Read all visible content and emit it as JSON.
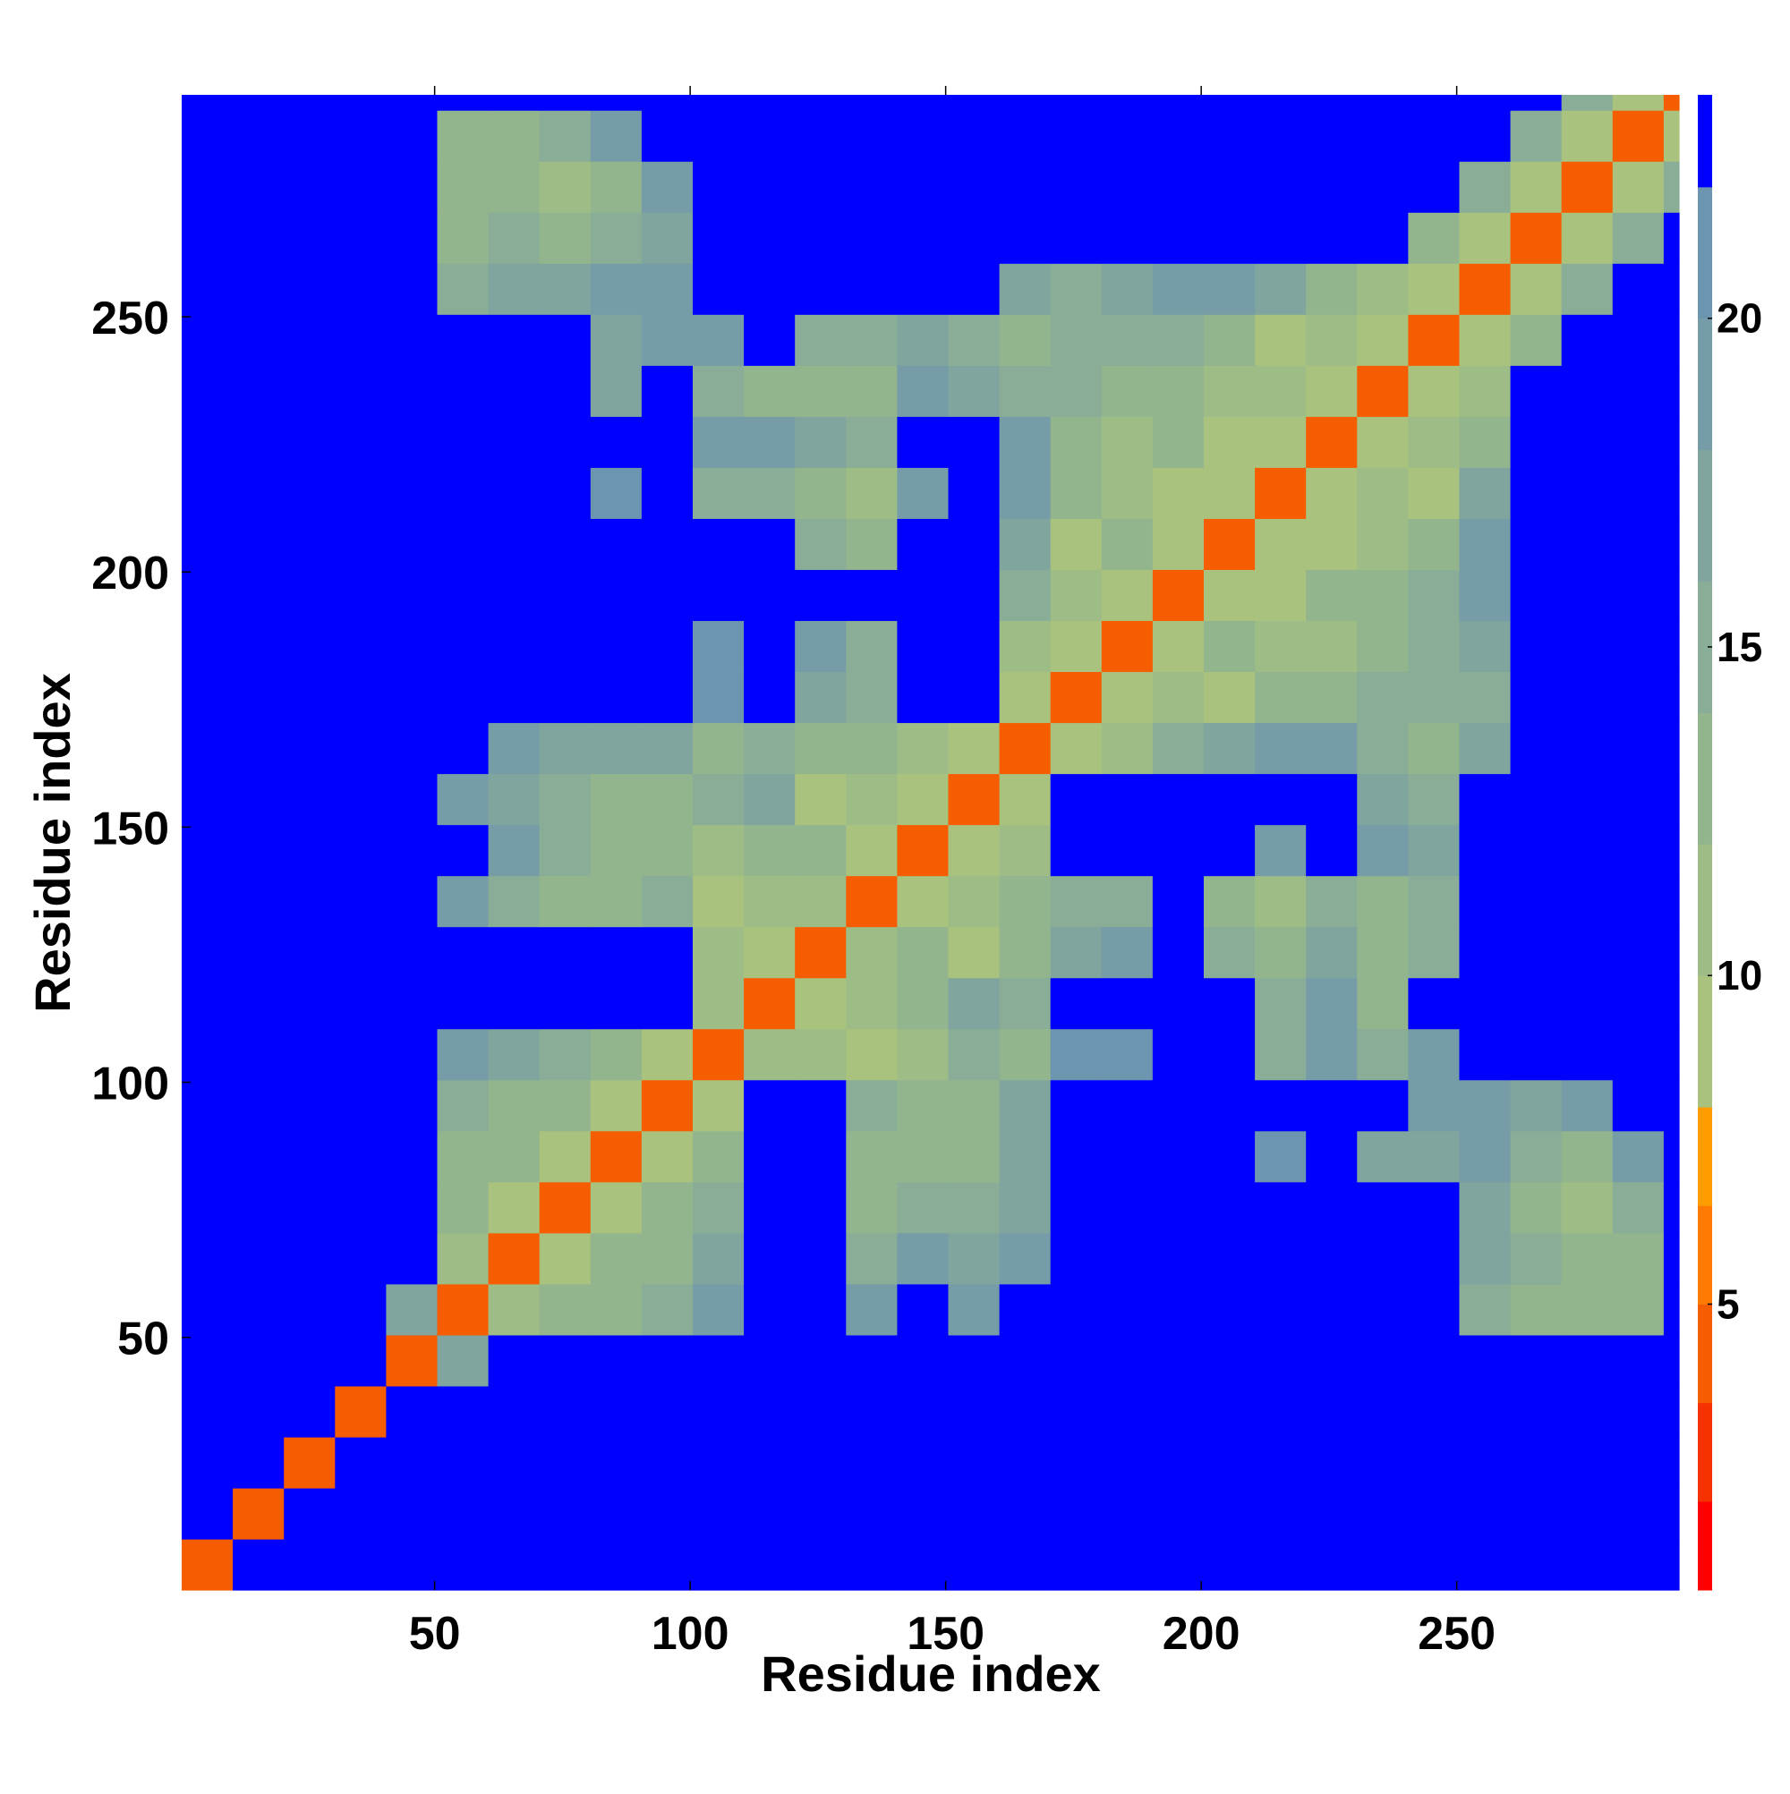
{
  "chart_data": {
    "type": "heatmap",
    "xlabel": "Residue index",
    "ylabel": "Residue index",
    "xlim": [
      0.5,
      293.5
    ],
    "ylim": [
      0.5,
      293.5
    ],
    "xticks": [
      50,
      100,
      150,
      200,
      250
    ],
    "yticks": [
      50,
      100,
      150,
      200,
      250
    ],
    "bin_edges": [
      0.5,
      10.5,
      20.5,
      30.5,
      40.5,
      50.5,
      60.5,
      70.5,
      80.5,
      90.5,
      100.5,
      110.5,
      120.5,
      130.5,
      140.5,
      150.5,
      160.5,
      170.5,
      180.5,
      190.5,
      200.5,
      210.5,
      220.5,
      230.5,
      240.5,
      250.5,
      260.5,
      270.5,
      280.5,
      290.5,
      293.5
    ],
    "z": [
      [
        4,
        23,
        23,
        23,
        23,
        23,
        23,
        23,
        23,
        23,
        23,
        23,
        23,
        23,
        23,
        23,
        23,
        23,
        23,
        23,
        23,
        23,
        23,
        23,
        23,
        23,
        23,
        23,
        23,
        23
      ],
      [
        23,
        4,
        23,
        23,
        23,
        23,
        23,
        23,
        23,
        23,
        23,
        23,
        23,
        23,
        23,
        23,
        23,
        23,
        23,
        23,
        23,
        23,
        23,
        23,
        23,
        23,
        23,
        23,
        23,
        23
      ],
      [
        23,
        23,
        4,
        23,
        23,
        23,
        23,
        23,
        23,
        23,
        23,
        23,
        23,
        23,
        23,
        23,
        23,
        23,
        23,
        23,
        23,
        23,
        23,
        23,
        23,
        23,
        23,
        23,
        23,
        23
      ],
      [
        23,
        23,
        23,
        4,
        23,
        23,
        23,
        23,
        23,
        23,
        23,
        23,
        23,
        23,
        23,
        23,
        23,
        23,
        23,
        23,
        23,
        23,
        23,
        23,
        23,
        23,
        23,
        23,
        23,
        23
      ],
      [
        23,
        23,
        23,
        23,
        4,
        16,
        23,
        23,
        23,
        23,
        23,
        23,
        23,
        23,
        23,
        23,
        23,
        23,
        23,
        23,
        23,
        23,
        23,
        23,
        23,
        23,
        23,
        23,
        23,
        23
      ],
      [
        23,
        23,
        23,
        23,
        16,
        4,
        10,
        12,
        13,
        14,
        18,
        23,
        23,
        18,
        23,
        18,
        23,
        23,
        23,
        23,
        23,
        23,
        23,
        23,
        23,
        14,
        12,
        13,
        13,
        23
      ],
      [
        23,
        23,
        23,
        23,
        23,
        10,
        4,
        9,
        12,
        12,
        16,
        23,
        23,
        14,
        18,
        16,
        18,
        23,
        23,
        23,
        23,
        23,
        23,
        23,
        23,
        16,
        14,
        12,
        12,
        23
      ],
      [
        23,
        23,
        23,
        23,
        23,
        12,
        9,
        4,
        9,
        12,
        14,
        23,
        23,
        12,
        14,
        14,
        16,
        23,
        23,
        23,
        23,
        23,
        23,
        23,
        23,
        16,
        13,
        11,
        14,
        23
      ],
      [
        23,
        23,
        23,
        23,
        23,
        13,
        12,
        9,
        4,
        9,
        12,
        23,
        23,
        12,
        13,
        12,
        16,
        23,
        23,
        23,
        23,
        20,
        23,
        16,
        16,
        18,
        14,
        12,
        18,
        23
      ],
      [
        23,
        23,
        23,
        23,
        23,
        14,
        12,
        12,
        9,
        4,
        9,
        23,
        23,
        14,
        12,
        12,
        16,
        23,
        23,
        23,
        23,
        23,
        23,
        23,
        18,
        18,
        16,
        18,
        23,
        23
      ],
      [
        23,
        23,
        23,
        23,
        23,
        18,
        16,
        14,
        12,
        9,
        4,
        10,
        10,
        8,
        10,
        14,
        12,
        20,
        20,
        23,
        23,
        15,
        18,
        15,
        18,
        23,
        23,
        23,
        23,
        23
      ],
      [
        23,
        23,
        23,
        23,
        23,
        23,
        23,
        23,
        23,
        23,
        10,
        4,
        8,
        10,
        12,
        16,
        14,
        23,
        23,
        23,
        23,
        14,
        18,
        13,
        23,
        23,
        23,
        23,
        23,
        23
      ],
      [
        23,
        23,
        23,
        23,
        23,
        23,
        23,
        23,
        23,
        23,
        10,
        8,
        4,
        10,
        12,
        8,
        12,
        16,
        18,
        23,
        14,
        13,
        16,
        13,
        15,
        23,
        23,
        23,
        23,
        23
      ],
      [
        23,
        23,
        23,
        23,
        23,
        18,
        14,
        12,
        12,
        14,
        8,
        10,
        10,
        4,
        8,
        10,
        12,
        14,
        14,
        23,
        12,
        11,
        14,
        12,
        14,
        23,
        23,
        23,
        23,
        23
      ],
      [
        23,
        23,
        23,
        23,
        23,
        23,
        18,
        14,
        13,
        12,
        10,
        12,
        12,
        8,
        4,
        9,
        10,
        23,
        23,
        23,
        23,
        18,
        23,
        18,
        16,
        23,
        23,
        23,
        23,
        23
      ],
      [
        23,
        23,
        23,
        23,
        23,
        18,
        16,
        14,
        12,
        12,
        14,
        16,
        8,
        10,
        9,
        4,
        9,
        23,
        23,
        23,
        23,
        23,
        23,
        16,
        14,
        23,
        23,
        23,
        23,
        23
      ],
      [
        23,
        23,
        23,
        23,
        23,
        23,
        18,
        16,
        16,
        16,
        12,
        14,
        12,
        12,
        10,
        9,
        4,
        9,
        11,
        14,
        16,
        18,
        18,
        15,
        13,
        16,
        23,
        23,
        23,
        23
      ],
      [
        23,
        23,
        23,
        23,
        23,
        23,
        23,
        23,
        23,
        23,
        20,
        23,
        16,
        14,
        23,
        23,
        9,
        4,
        9,
        11,
        9,
        12,
        13,
        14,
        15,
        14,
        23,
        23,
        23,
        23
      ],
      [
        23,
        23,
        23,
        23,
        23,
        23,
        23,
        23,
        23,
        23,
        20,
        23,
        18,
        14,
        23,
        23,
        11,
        9,
        4,
        9,
        12,
        11,
        11,
        13,
        14,
        16,
        23,
        23,
        23,
        23
      ],
      [
        23,
        23,
        23,
        23,
        23,
        23,
        23,
        23,
        23,
        23,
        23,
        23,
        23,
        23,
        23,
        23,
        14,
        11,
        9,
        4,
        9,
        9,
        12,
        12,
        15,
        18,
        23,
        23,
        23,
        23
      ],
      [
        23,
        23,
        23,
        23,
        23,
        23,
        23,
        23,
        23,
        23,
        23,
        23,
        14,
        12,
        23,
        23,
        16,
        9,
        12,
        9,
        4,
        9,
        9,
        11,
        13,
        18,
        23,
        23,
        23,
        23
      ],
      [
        23,
        23,
        23,
        23,
        23,
        23,
        23,
        23,
        20,
        23,
        15,
        14,
        13,
        11,
        18,
        23,
        18,
        12,
        11,
        9,
        9,
        4,
        9,
        11,
        9,
        16,
        23,
        23,
        23,
        23
      ],
      [
        23,
        23,
        23,
        23,
        23,
        23,
        23,
        23,
        23,
        23,
        18,
        18,
        16,
        14,
        23,
        23,
        18,
        13,
        11,
        12,
        9,
        9,
        4,
        9,
        10,
        13,
        23,
        23,
        23,
        23
      ],
      [
        23,
        23,
        23,
        23,
        23,
        23,
        23,
        23,
        16,
        23,
        15,
        13,
        13,
        12,
        18,
        16,
        15,
        14,
        13,
        12,
        11,
        11,
        9,
        4,
        9,
        11,
        23,
        23,
        23,
        23
      ],
      [
        23,
        23,
        23,
        23,
        23,
        23,
        23,
        23,
        16,
        18,
        18,
        23,
        15,
        14,
        16,
        14,
        13,
        15,
        14,
        15,
        13,
        9,
        10,
        9,
        4,
        9,
        12,
        23,
        23,
        23
      ],
      [
        23,
        23,
        23,
        23,
        23,
        14,
        16,
        16,
        18,
        18,
        23,
        23,
        23,
        23,
        23,
        23,
        16,
        14,
        16,
        18,
        18,
        16,
        13,
        11,
        9,
        4,
        9,
        14,
        23,
        23
      ],
      [
        23,
        23,
        23,
        23,
        23,
        12,
        14,
        13,
        14,
        16,
        23,
        23,
        23,
        23,
        23,
        23,
        23,
        23,
        23,
        23,
        23,
        23,
        23,
        23,
        12,
        9,
        4,
        9,
        14,
        23
      ],
      [
        23,
        23,
        23,
        23,
        23,
        13,
        12,
        11,
        12,
        18,
        23,
        23,
        23,
        23,
        23,
        23,
        23,
        23,
        23,
        23,
        23,
        23,
        23,
        23,
        23,
        14,
        9,
        4,
        9,
        14
      ],
      [
        23,
        23,
        23,
        23,
        23,
        13,
        12,
        14,
        18,
        23,
        23,
        23,
        23,
        23,
        23,
        23,
        23,
        23,
        23,
        23,
        23,
        23,
        23,
        23,
        23,
        23,
        14,
        9,
        4,
        9
      ],
      [
        23,
        23,
        23,
        23,
        23,
        23,
        23,
        23,
        23,
        23,
        23,
        23,
        23,
        23,
        23,
        23,
        23,
        23,
        23,
        23,
        23,
        23,
        23,
        23,
        23,
        23,
        23,
        14,
        9,
        4
      ]
    ],
    "colorbar": {
      "levels": [
        0.65,
        2,
        3.5,
        5,
        6.5,
        8,
        10,
        12,
        14,
        16,
        18,
        20,
        22,
        23.4
      ],
      "colors": [
        "#ff0000",
        "#f53200",
        "#f65c00",
        "#ff7a00",
        "#ff9c00",
        "#a9c27e",
        "#9ebd86",
        "#93b58e",
        "#89ad96",
        "#7fa59e",
        "#769da7",
        "#6c95af",
        "#0000ff"
      ],
      "ticks": [
        5,
        10,
        15,
        20
      ]
    }
  }
}
